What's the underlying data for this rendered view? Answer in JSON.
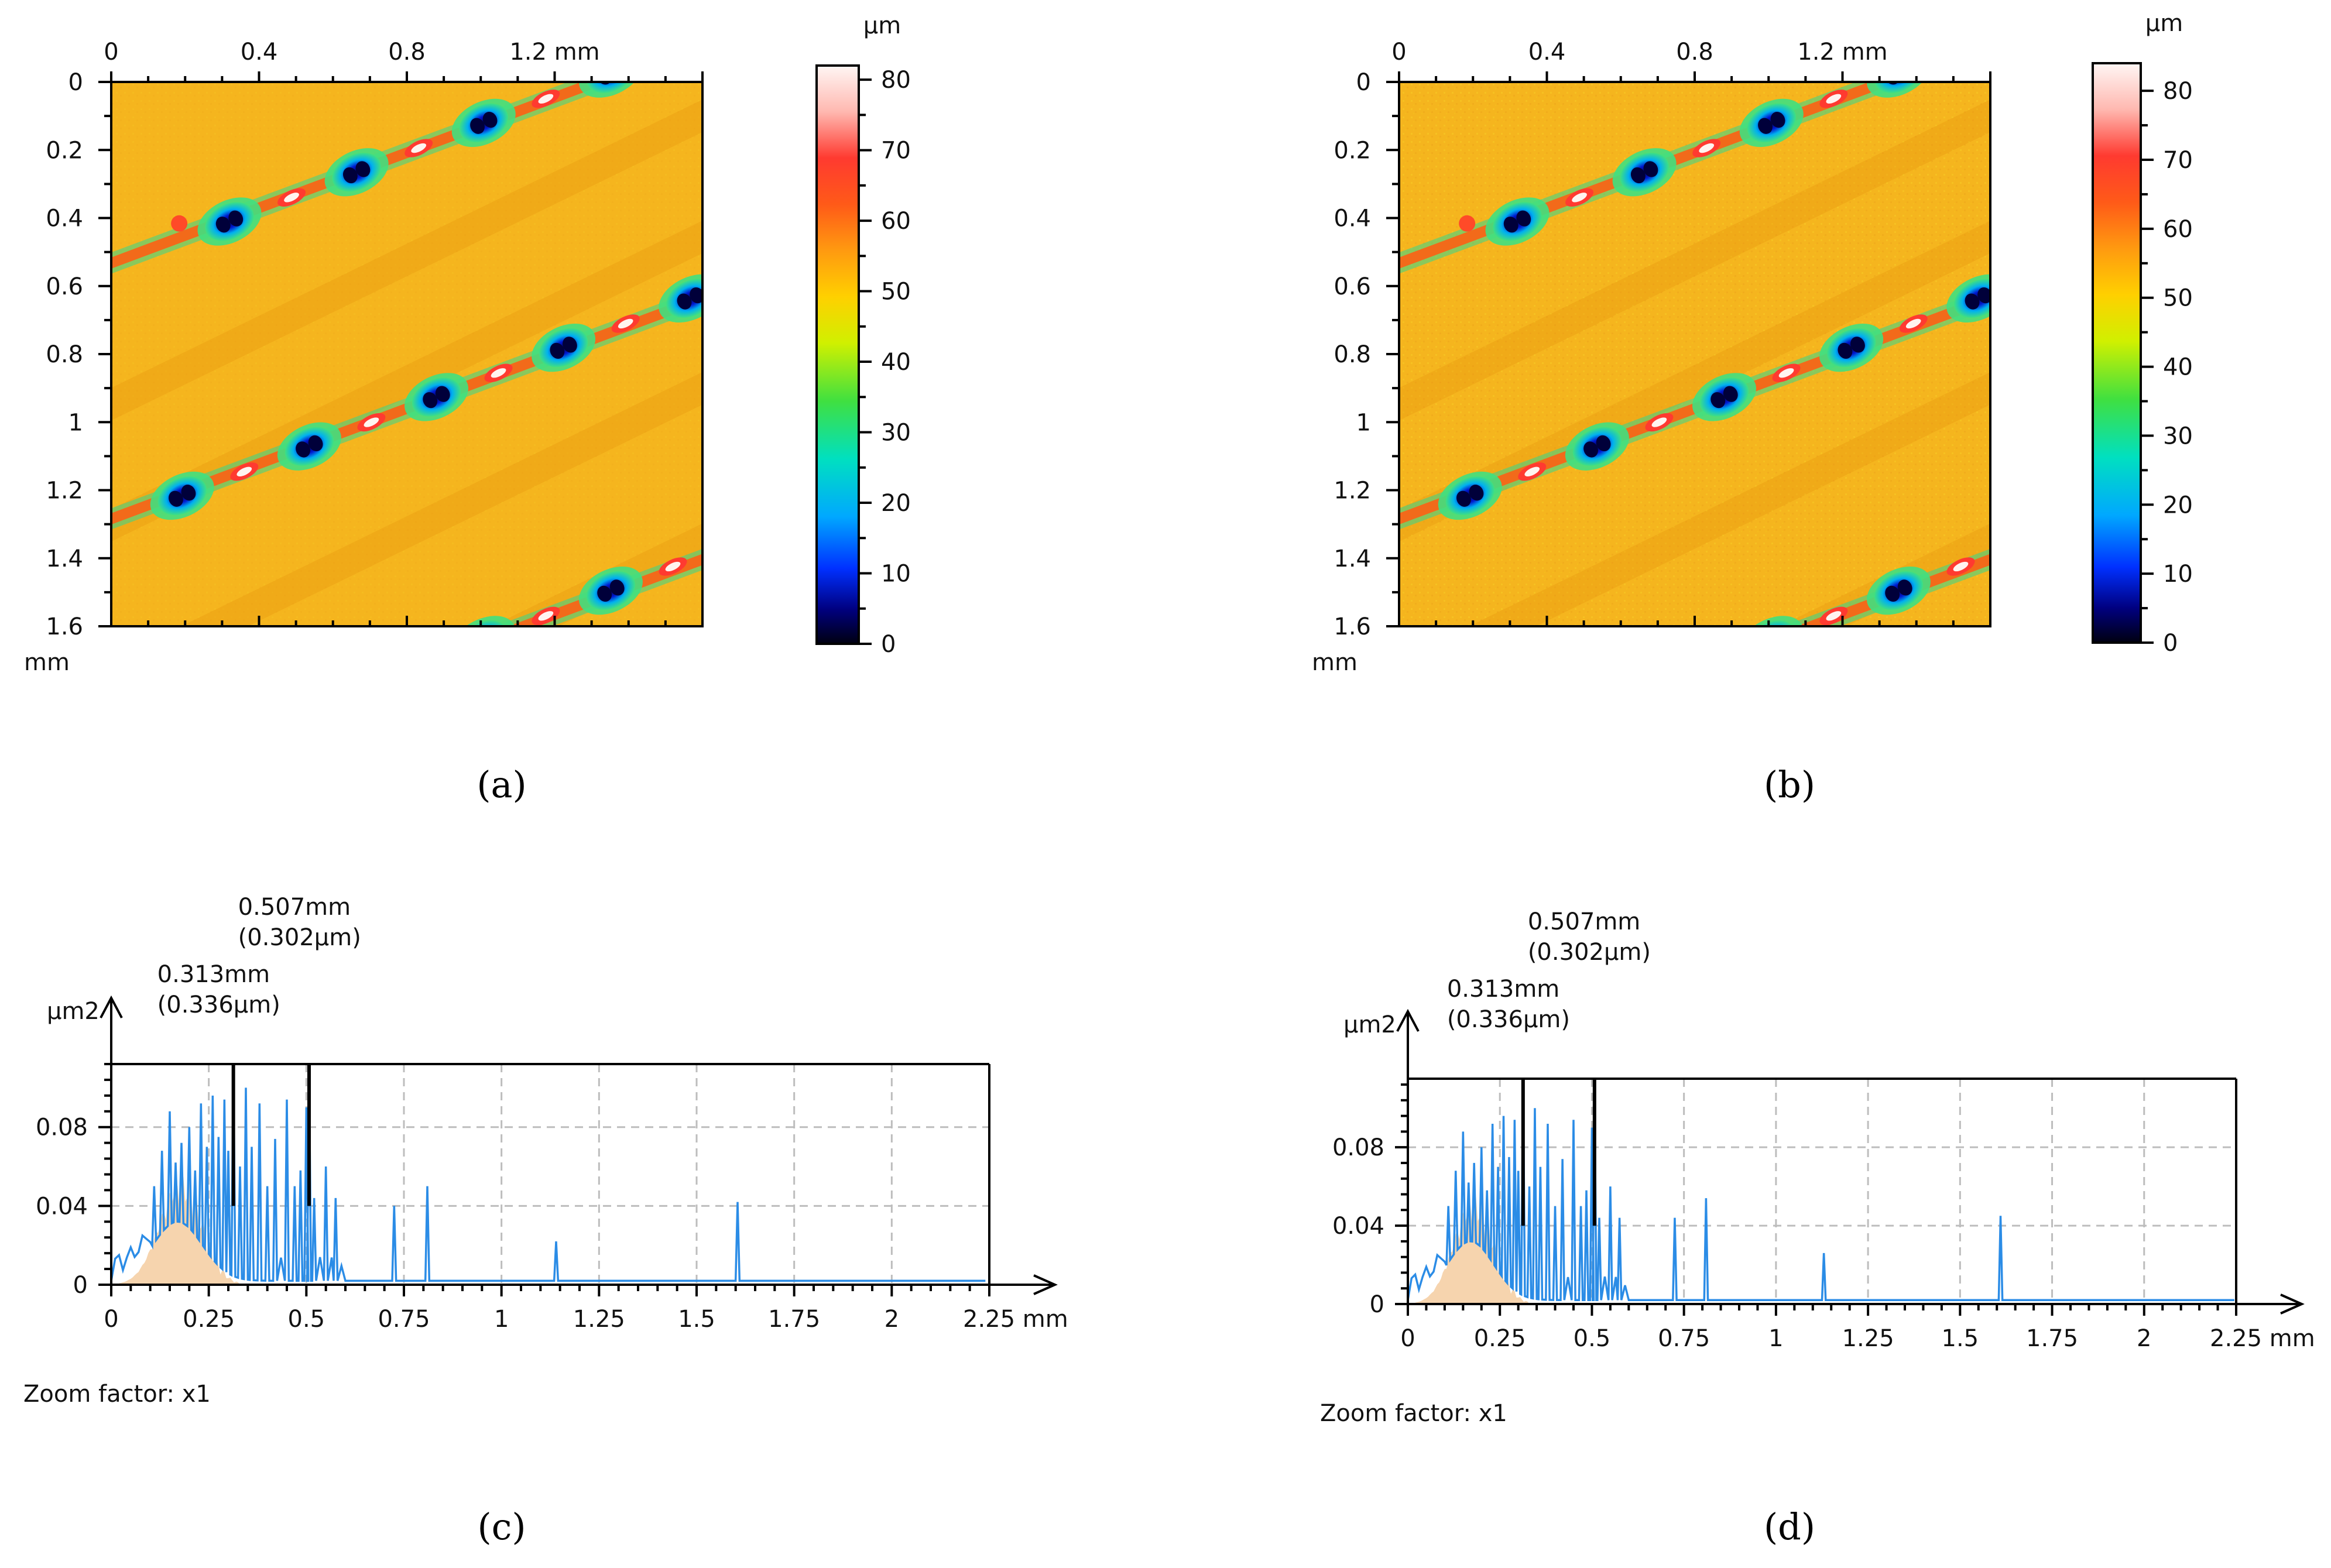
{
  "chart_data": [
    {
      "panel": "a",
      "caption": "(a)",
      "type": "heatmap",
      "x_axis": {
        "ticks": [
          "0",
          "0.4",
          "0.8",
          "1.2 mm"
        ],
        "range": [
          0,
          1.6
        ]
      },
      "y_axis": {
        "ticks": [
          "0",
          "0.2",
          "0.4",
          "0.6",
          "0.8",
          "1",
          "1.2",
          "1.4",
          "1.6"
        ],
        "unit_label": "mm",
        "range": [
          0,
          1.6
        ]
      },
      "colorbar": {
        "unit": "µm",
        "ticks": [
          "0",
          "10",
          "20",
          "30",
          "40",
          "50",
          "60",
          "70",
          "80"
        ],
        "range": [
          0,
          82
        ]
      },
      "pattern": "diagonal rows of elongated pits (min ~5 µm) with raised rims (~65-80 µm) on a ~52 µm background"
    },
    {
      "panel": "b",
      "caption": "(b)",
      "type": "heatmap",
      "x_axis": {
        "ticks": [
          "0",
          "0.4",
          "0.8",
          "1.2 mm"
        ],
        "range": [
          0,
          1.6
        ]
      },
      "y_axis": {
        "ticks": [
          "0",
          "0.2",
          "0.4",
          "0.6",
          "0.8",
          "1",
          "1.2",
          "1.4",
          "1.6"
        ],
        "unit_label": "mm",
        "range": [
          0,
          1.6
        ]
      },
      "colorbar": {
        "unit": "µm",
        "ticks": [
          "0",
          "10",
          "20",
          "30",
          "40",
          "50",
          "60",
          "70",
          "80"
        ],
        "range": [
          0,
          84
        ]
      },
      "pattern": "same surface after filtering, slightly noisier texture"
    },
    {
      "panel": "c",
      "caption": "(c)",
      "type": "line",
      "ylabel": "µm2",
      "xlabel": "mm",
      "x_ticks": [
        "0",
        "0.25",
        "0.5",
        "0.75",
        "1",
        "1.25",
        "1.5",
        "1.75",
        "2",
        "2.25 mm"
      ],
      "y_ticks": [
        "0",
        "0.04",
        "0.08"
      ],
      "xlim": [
        0,
        2.25
      ],
      "ylim": [
        0,
        0.112
      ],
      "zoom_label": "Zoom factor: x1",
      "markers": [
        {
          "x": 0.313,
          "line1": "0.313mm",
          "line2": "(0.336µm)"
        },
        {
          "x": 0.507,
          "line1": "0.507mm",
          "line2": "(0.302µm)"
        }
      ],
      "peaks": [
        [
          0.11,
          0.05
        ],
        [
          0.13,
          0.068
        ],
        [
          0.15,
          0.088
        ],
        [
          0.165,
          0.062
        ],
        [
          0.18,
          0.072
        ],
        [
          0.2,
          0.08
        ],
        [
          0.215,
          0.058
        ],
        [
          0.23,
          0.092
        ],
        [
          0.245,
          0.07
        ],
        [
          0.26,
          0.096
        ],
        [
          0.275,
          0.075
        ],
        [
          0.29,
          0.094
        ],
        [
          0.3,
          0.068
        ],
        [
          0.313,
          0.112
        ],
        [
          0.33,
          0.06
        ],
        [
          0.345,
          0.1
        ],
        [
          0.36,
          0.07
        ],
        [
          0.38,
          0.092
        ],
        [
          0.4,
          0.05
        ],
        [
          0.42,
          0.074
        ],
        [
          0.45,
          0.094
        ],
        [
          0.47,
          0.05
        ],
        [
          0.485,
          0.058
        ],
        [
          0.5,
          0.09
        ],
        [
          0.507,
          0.112
        ],
        [
          0.52,
          0.044
        ],
        [
          0.55,
          0.06
        ],
        [
          0.575,
          0.044
        ],
        [
          0.725,
          0.04
        ],
        [
          0.81,
          0.05
        ],
        [
          1.14,
          0.022
        ],
        [
          1.605,
          0.042
        ]
      ]
    },
    {
      "panel": "d",
      "caption": "(d)",
      "type": "line",
      "ylabel": "µm2",
      "xlabel": "mm",
      "x_ticks": [
        "0",
        "0.25",
        "0.5",
        "0.75",
        "1",
        "1.25",
        "1.5",
        "1.75",
        "2",
        "2.25 mm"
      ],
      "y_ticks": [
        "0",
        "0.04",
        "0.08"
      ],
      "xlim": [
        0,
        2.25
      ],
      "ylim": [
        0,
        0.115
      ],
      "zoom_label": "Zoom factor: x1",
      "markers": [
        {
          "x": 0.313,
          "line1": "0.313mm",
          "line2": "(0.336µm)"
        },
        {
          "x": 0.507,
          "line1": "0.507mm",
          "line2": "(0.302µm)"
        }
      ],
      "peaks": [
        [
          0.11,
          0.05
        ],
        [
          0.13,
          0.068
        ],
        [
          0.15,
          0.088
        ],
        [
          0.165,
          0.062
        ],
        [
          0.18,
          0.072
        ],
        [
          0.2,
          0.08
        ],
        [
          0.215,
          0.058
        ],
        [
          0.23,
          0.092
        ],
        [
          0.245,
          0.07
        ],
        [
          0.26,
          0.096
        ],
        [
          0.275,
          0.075
        ],
        [
          0.29,
          0.094
        ],
        [
          0.3,
          0.068
        ],
        [
          0.313,
          0.115
        ],
        [
          0.33,
          0.06
        ],
        [
          0.345,
          0.1
        ],
        [
          0.36,
          0.07
        ],
        [
          0.38,
          0.092
        ],
        [
          0.4,
          0.05
        ],
        [
          0.42,
          0.074
        ],
        [
          0.45,
          0.094
        ],
        [
          0.47,
          0.05
        ],
        [
          0.485,
          0.058
        ],
        [
          0.5,
          0.09
        ],
        [
          0.507,
          0.115
        ],
        [
          0.52,
          0.044
        ],
        [
          0.55,
          0.06
        ],
        [
          0.575,
          0.044
        ],
        [
          0.725,
          0.044
        ],
        [
          0.81,
          0.054
        ],
        [
          1.13,
          0.026
        ],
        [
          1.61,
          0.045
        ]
      ]
    }
  ]
}
